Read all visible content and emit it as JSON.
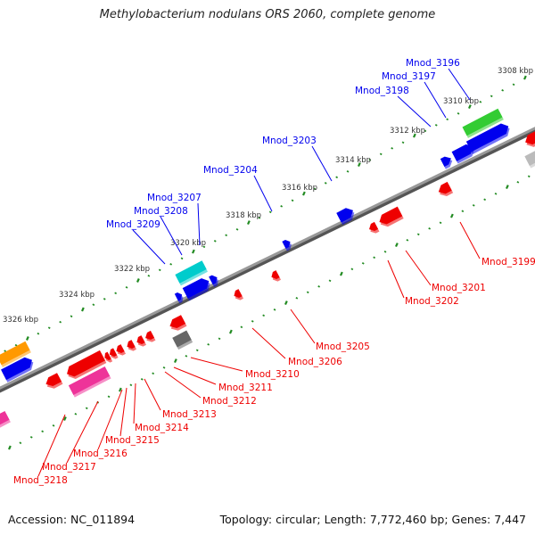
{
  "title": "Methylobacterium nodulans ORS 2060, complete genome",
  "footer": {
    "accession": "Accession: NC_011894",
    "topology": "Topology: circular; Length: 7,772,460 bp; Genes: 7,447"
  },
  "ticks": [
    "3308 kbp",
    "3310 kbp",
    "3312 kbp",
    "3314 kbp",
    "3316 kbp",
    "3318 kbp",
    "3320 kbp",
    "3322 kbp",
    "3324 kbp",
    "3326 kbp"
  ],
  "forward_labels": [
    "Mnod_3196",
    "Mnod_3197",
    "Mnod_3198",
    "Mnod_3203",
    "Mnod_3204",
    "Mnod_3207",
    "Mnod_3208",
    "Mnod_3209"
  ],
  "reverse_labels": [
    "Mnod_3199",
    "Mnod_3201",
    "Mnod_3202",
    "Mnod_3205",
    "Mnod_3206",
    "Mnod_3210",
    "Mnod_3211",
    "Mnod_3212",
    "Mnod_3213",
    "Mnod_3214",
    "Mnod_3215",
    "Mnod_3216",
    "Mnod_3217",
    "Mnod_3218"
  ],
  "colors": {
    "forward": "#0000ee",
    "reverse": "#ee0000",
    "tick": "#228b22",
    "backbone": "#808080"
  }
}
